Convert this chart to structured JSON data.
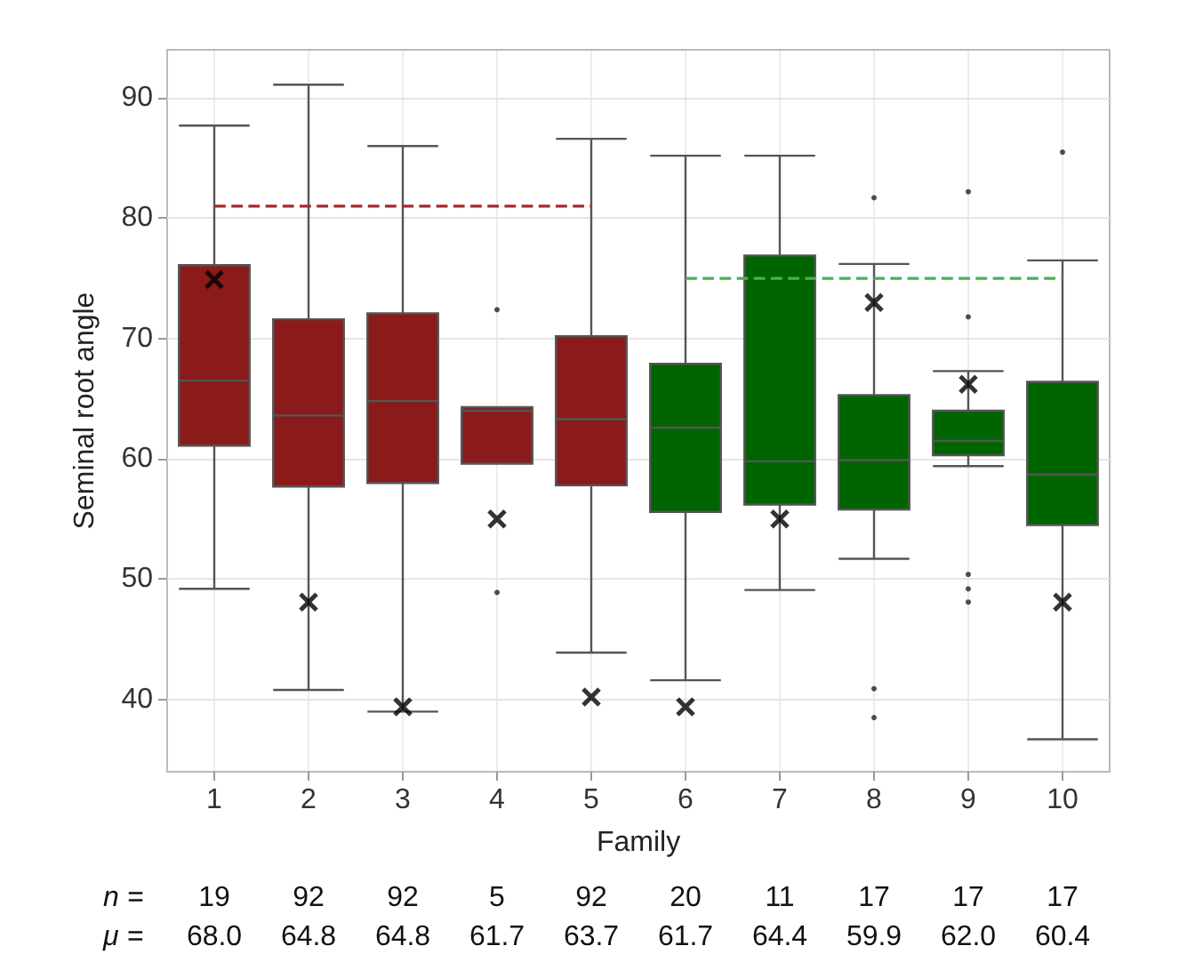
{
  "chart_data": {
    "type": "box",
    "xlabel": "Family",
    "ylabel": "Seminal root angle",
    "categories": [
      "1",
      "2",
      "3",
      "4",
      "5",
      "6",
      "7",
      "8",
      "9",
      "10"
    ],
    "ylim": [
      34,
      94
    ],
    "yticks": [
      40,
      50,
      60,
      70,
      80,
      90
    ],
    "grid": true,
    "colors": [
      "#8b1a1a",
      "#8b1a1a",
      "#8b1a1a",
      "#8b1a1a",
      "#8b1a1a",
      "#006400",
      "#006400",
      "#006400",
      "#006400",
      "#006400"
    ],
    "boxes": [
      {
        "low": 49.2,
        "q1": 61.1,
        "median": 66.5,
        "q3": 76.1,
        "high": 87.7
      },
      {
        "low": 40.8,
        "q1": 57.7,
        "median": 63.6,
        "q3": 71.6,
        "high": 91.1
      },
      {
        "low": 39.0,
        "q1": 58.0,
        "median": 64.8,
        "q3": 72.1,
        "high": 86.0
      },
      {
        "low": 59.6,
        "q1": 59.6,
        "median": 64.0,
        "q3": 64.3,
        "high": 64.3,
        "outliers": [
          72.4,
          48.9
        ]
      },
      {
        "low": 43.9,
        "q1": 57.8,
        "median": 63.3,
        "q3": 70.2,
        "high": 86.6
      },
      {
        "low": 41.6,
        "q1": 55.6,
        "median": 62.6,
        "q3": 67.9,
        "high": 85.2
      },
      {
        "low": 49.1,
        "q1": 56.2,
        "median": 59.8,
        "q3": 76.9,
        "high": 85.2
      },
      {
        "low": 51.7,
        "q1": 55.8,
        "median": 59.9,
        "q3": 65.3,
        "high": 76.2,
        "outliers": [
          81.7,
          40.9,
          38.5
        ]
      },
      {
        "low": 59.4,
        "q1": 60.3,
        "median": 61.5,
        "q3": 64.0,
        "high": 67.3,
        "outliers": [
          82.2,
          71.8,
          50.4,
          49.2,
          48.1
        ]
      },
      {
        "low": 36.7,
        "q1": 54.5,
        "median": 58.7,
        "q3": 66.4,
        "high": 76.5,
        "outliers": [
          85.5
        ]
      }
    ],
    "series": [
      {
        "type": "scatter",
        "marker": "cross",
        "color": "#000000",
        "x": [
          "1",
          "2",
          "3",
          "4",
          "5",
          "6",
          "7",
          "8",
          "9",
          "10"
        ],
        "values": [
          74.9,
          48.1,
          39.4,
          55.0,
          40.2,
          39.4,
          55.0,
          73.0,
          66.2,
          48.1
        ]
      },
      {
        "type": "line",
        "line_style": "dashed",
        "color": "#a52a2a",
        "x": [
          "1",
          "5"
        ],
        "values": [
          81,
          81
        ]
      },
      {
        "type": "line",
        "line_style": "dashed",
        "color": "#4caf50",
        "x": [
          "6",
          "10"
        ],
        "values": [
          75,
          75
        ]
      }
    ],
    "annotations": [
      "n =",
      "19",
      "92",
      "92",
      "5",
      "92",
      "20",
      "11",
      "17",
      "17",
      "17",
      "μ =",
      "68.0",
      "64.8",
      "64.8",
      "61.7",
      "63.7",
      "61.7",
      "64.4",
      "59.9",
      "62.0",
      "60.4"
    ]
  }
}
